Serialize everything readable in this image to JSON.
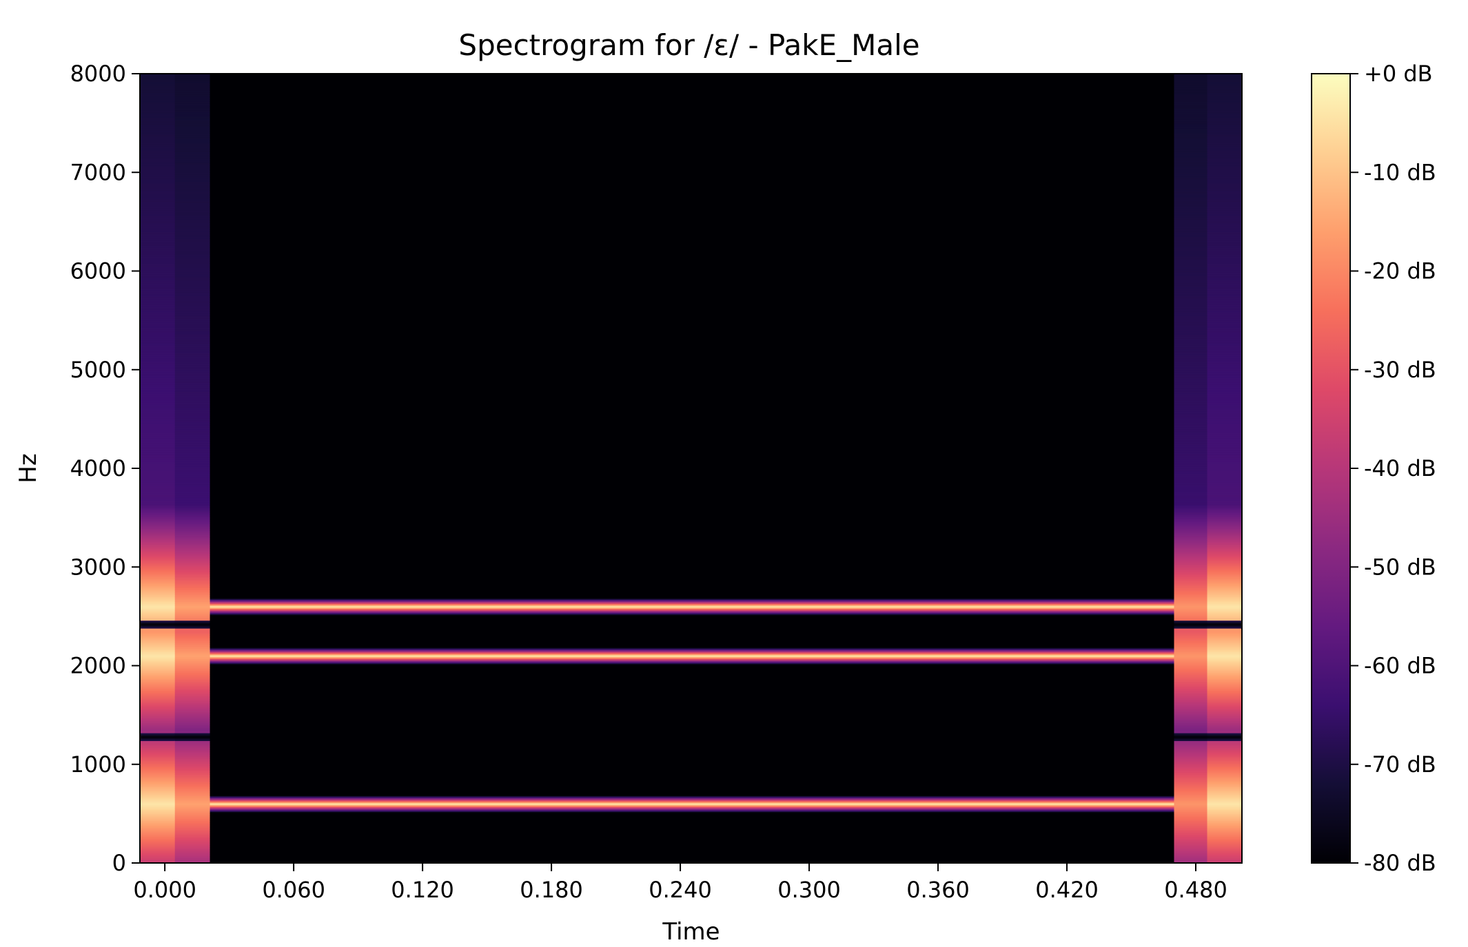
{
  "chart_data": {
    "type": "heatmap",
    "title": "Spectrogram for /ɛ/ - PakE_Male",
    "xlabel": "Time",
    "ylabel": "Hz",
    "xlim": [
      -0.0116,
      0.5015
    ],
    "ylim": [
      0,
      8000
    ],
    "xticks": [
      0.0,
      0.06,
      0.12,
      0.18,
      0.24,
      0.3,
      0.36,
      0.42,
      0.48
    ],
    "xtick_labels": [
      "0.000",
      "0.060",
      "0.120",
      "0.180",
      "0.240",
      "0.300",
      "0.360",
      "0.420",
      "0.480"
    ],
    "yticks": [
      0,
      1000,
      2000,
      3000,
      4000,
      5000,
      6000,
      7000,
      8000
    ],
    "ytick_labels": [
      "0",
      "1000",
      "2000",
      "3000",
      "4000",
      "5000",
      "6000",
      "7000",
      "8000"
    ],
    "colorbar": {
      "colormap": "magma",
      "range_db": [
        -80,
        0
      ],
      "ticks": [
        0,
        -10,
        -20,
        -30,
        -40,
        -50,
        -60,
        -70,
        -80
      ],
      "tick_labels": [
        "+0 dB",
        "-10 dB",
        "-20 dB",
        "-30 dB",
        "-40 dB",
        "-50 dB",
        "-60 dB",
        "-70 dB",
        "-80 dB"
      ]
    },
    "frames": [
      {
        "t_start": -0.0116,
        "t_end": 0.0047,
        "type": "edge",
        "amp": 1.0,
        "floor_db": -80
      },
      {
        "t_start": 0.0047,
        "t_end": 0.021,
        "type": "edge",
        "amp": 0.85,
        "floor_db": -80
      },
      {
        "t_start": 0.021,
        "t_end": 0.4699,
        "type": "steady",
        "amp": 1.0,
        "floor_db": -80
      },
      {
        "t_start": 0.4699,
        "t_end": 0.4853,
        "type": "edge",
        "amp": 0.82,
        "floor_db": -80
      },
      {
        "t_start": 0.4853,
        "t_end": 0.5015,
        "type": "edge",
        "amp": 1.0,
        "floor_db": -80
      }
    ],
    "formants_hz": [
      600,
      2100,
      2600
    ],
    "notches_hz": [
      1280,
      2420
    ]
  }
}
